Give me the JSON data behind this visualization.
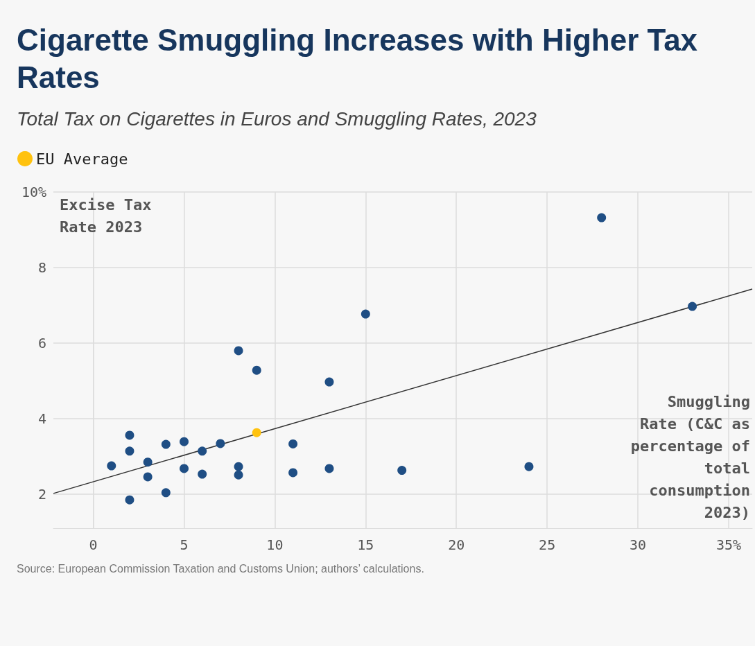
{
  "chart_data": {
    "type": "scatter",
    "title": "Cigarette Smuggling Increases with Higher Tax Rates",
    "subtitle": "Total Tax on Cigarettes in Euros and Smuggling Rates, 2023",
    "xlabel": "Smuggling Rate (C&C as percentage of total consumption 2023)",
    "ylabel": "Excise Tax Rate 2023",
    "annotations": [
      "Source: European Commission Taxation and Customs Union; authors’ calculations."
    ],
    "series": [
      {
        "color": "#1f4e84",
        "x": [
          1,
          2,
          2,
          2,
          3,
          3,
          4,
          4,
          5,
          5,
          6,
          6,
          7,
          8,
          8,
          8,
          9,
          11,
          11,
          13,
          13,
          15,
          17,
          24,
          28,
          33
        ],
        "values": [
          2.75,
          3.56,
          3.14,
          1.85,
          2.85,
          2.46,
          3.32,
          2.04,
          3.39,
          2.68,
          3.14,
          2.53,
          3.34,
          5.8,
          2.73,
          2.51,
          5.28,
          3.33,
          2.57,
          4.97,
          2.68,
          6.77,
          2.63,
          2.73,
          9.32,
          6.97
        ]
      },
      {
        "type": "scatter",
        "name": "EU Average",
        "color": "#ffc20e",
        "x": [
          9
        ],
        "values": [
          3.63
        ]
      },
      {
        "type": "line",
        "marker": "none",
        "color": "#333333",
        "x": [
          -2.2,
          36.3
        ],
        "values": [
          2.02,
          7.43
        ]
      }
    ],
    "xlim": [
      -2.2,
      36.3
    ],
    "ylim": [
      1.1,
      10
    ],
    "xticks": [
      0,
      5,
      10,
      15,
      20,
      25,
      30,
      {
        "value": 35,
        "label": "35%"
      }
    ],
    "yticks": [
      2,
      4,
      6,
      8,
      {
        "value": 10,
        "label": "10%"
      }
    ],
    "grid": true,
    "legend": "top left",
    "marker": "circle"
  }
}
